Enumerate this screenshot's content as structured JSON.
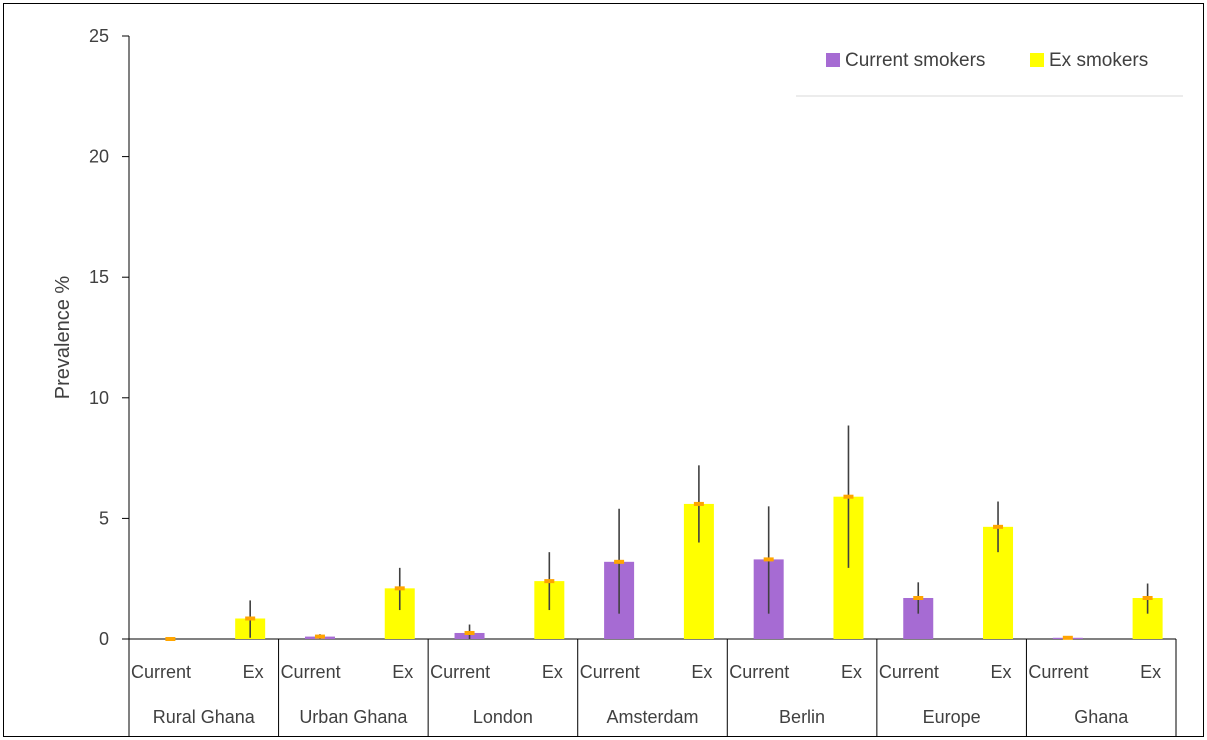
{
  "chart_data": {
    "type": "bar",
    "title": "",
    "xlabel": "",
    "ylabel": "Prevalence %",
    "ylim": [
      0,
      25
    ],
    "yticks": [
      0,
      5,
      10,
      15,
      20,
      25
    ],
    "grid": false,
    "legend_position": "top-right",
    "groups": [
      "Rural Ghana",
      "Urban Ghana",
      "London",
      "Amsterdam",
      "Berlin",
      "Europe",
      "Ghana"
    ],
    "subcategories": [
      "Current",
      "Ex"
    ],
    "series": [
      {
        "name": "Current smokers",
        "subcategory": "Current",
        "color": "#A66BD3",
        "values": [
          0.0,
          0.1,
          0.25,
          3.2,
          3.3,
          1.7,
          0.05
        ],
        "error_low": [
          0.0,
          0.0,
          0.0,
          1.05,
          1.05,
          1.05,
          0.0
        ],
        "error_high": [
          0.0,
          0.2,
          0.6,
          5.4,
          5.5,
          2.35,
          0.1
        ]
      },
      {
        "name": "Ex smokers",
        "subcategory": "Ex",
        "color": "#FFFF00",
        "values": [
          0.85,
          2.1,
          2.4,
          5.6,
          5.9,
          4.65,
          1.7
        ],
        "error_low": [
          0.05,
          1.2,
          1.2,
          4.0,
          2.95,
          3.6,
          1.05
        ],
        "error_high": [
          1.6,
          2.95,
          3.6,
          7.2,
          8.85,
          5.7,
          2.3
        ]
      }
    ],
    "mean_marker_color": "#FFA500",
    "error_bar_color": "#404040",
    "axis_color": "#000000"
  }
}
